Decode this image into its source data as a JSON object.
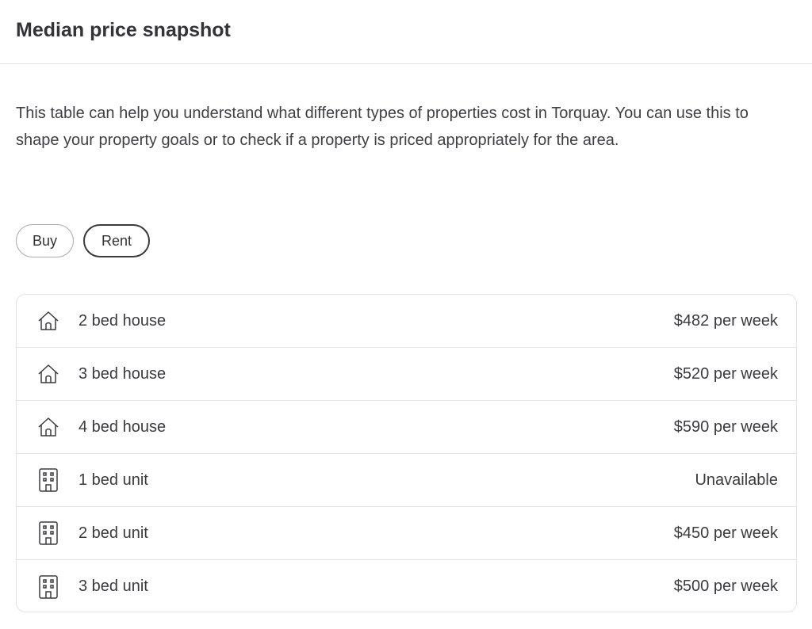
{
  "header": {
    "title": "Median price snapshot"
  },
  "description": "This table can help you understand what different types of properties cost in Torquay. You can use this to shape your property goals or to check if a property is priced appropriately for the area.",
  "toggle": {
    "buy": "Buy",
    "rent": "Rent",
    "selected": "Rent"
  },
  "rows": [
    {
      "icon": "house-icon",
      "label": "2 bed house",
      "value": "$482 per week"
    },
    {
      "icon": "house-icon",
      "label": "3 bed house",
      "value": "$520 per week"
    },
    {
      "icon": "house-icon",
      "label": "4 bed house",
      "value": "$590 per week"
    },
    {
      "icon": "building-icon",
      "label": "1 bed unit",
      "value": "Unavailable"
    },
    {
      "icon": "building-icon",
      "label": "2 bed unit",
      "value": "$450 per week"
    },
    {
      "icon": "building-icon",
      "label": "3 bed unit",
      "value": "$500 per week"
    }
  ]
}
